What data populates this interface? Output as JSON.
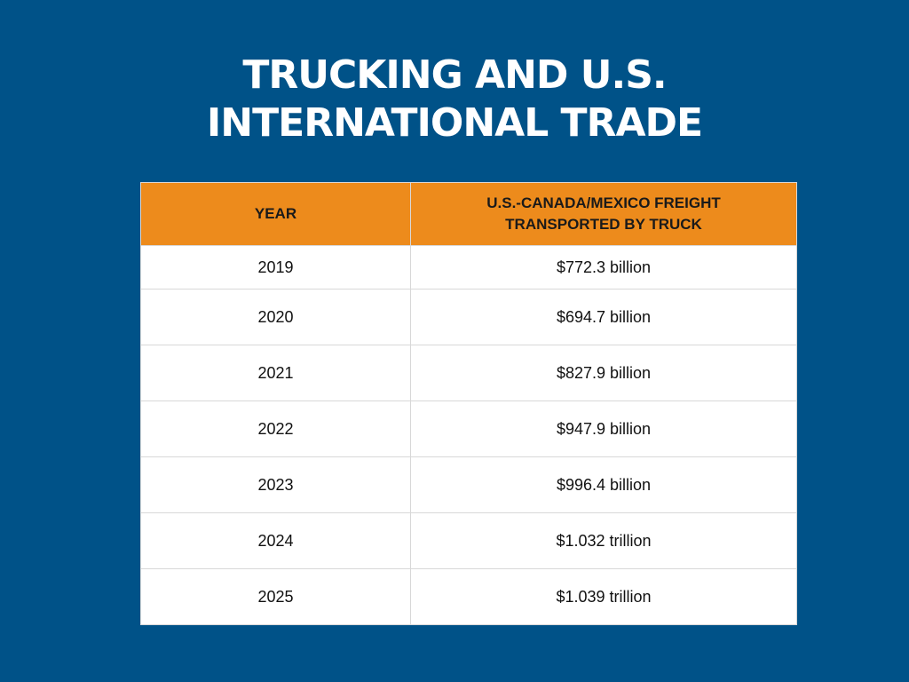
{
  "title": {
    "line1": "TRUCKING AND U.S.",
    "line2": "INTERNATIONAL TRADE"
  },
  "colors": {
    "background": "#005288",
    "header": "#ed8b1c",
    "table_bg": "#ffffff"
  },
  "chart_data": {
    "type": "table",
    "title": "TRUCKING AND U.S. INTERNATIONAL TRADE",
    "columns": [
      "YEAR",
      "U.S.-CANADA/MEXICO FREIGHT TRANSPORTED BY TRUCK"
    ],
    "header_lines": {
      "year": "YEAR",
      "freight_line1": "U.S.-CANADA/MEXICO FREIGHT",
      "freight_line2": "TRANSPORTED BY TRUCK"
    },
    "rows": [
      {
        "year": "2019",
        "value": "$772.3 billion"
      },
      {
        "year": "2020",
        "value": "$694.7 billion"
      },
      {
        "year": "2021",
        "value": "$827.9 billion"
      },
      {
        "year": "2022",
        "value": "$947.9 billion"
      },
      {
        "year": "2023",
        "value": "$996.4 billion"
      },
      {
        "year": "2024",
        "value": "$1.032 trillion"
      },
      {
        "year": "2025",
        "value": "$1.039 trillion"
      }
    ]
  }
}
